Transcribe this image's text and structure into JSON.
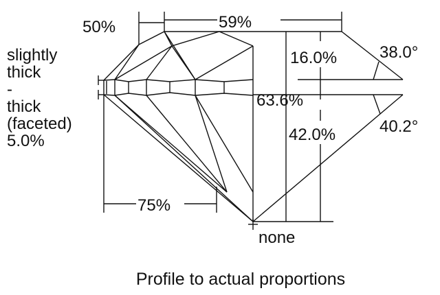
{
  "diagram": {
    "caption": "Profile to actual proportions",
    "girdle_label": [
      "slightly",
      "thick",
      "-",
      "thick",
      "(faceted)",
      "5.0%"
    ],
    "star_length": "50%",
    "table_size": "59%",
    "lower_half_length": "75%",
    "crown_height": "16.0%",
    "crown_angle": "38.0°",
    "total_depth": "63.6%",
    "pavilion_depth": "42.0%",
    "pavilion_angle": "40.2°",
    "culet": "none",
    "line_color": "#111111",
    "background_color": "#ffffff"
  }
}
